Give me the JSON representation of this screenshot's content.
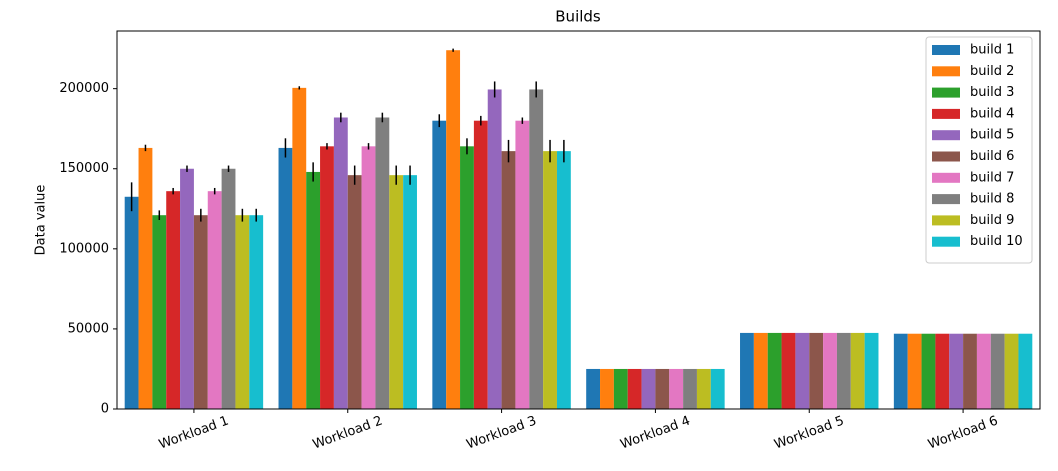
{
  "chart_data": {
    "type": "bar",
    "title": "Builds",
    "y_label": "Data value",
    "categories": [
      "Workload 1",
      "Workload 2",
      "Workload 3",
      "Workload 4",
      "Workload 5",
      "Workload 6"
    ],
    "series": [
      {
        "name": "build 1",
        "color": "#1f77b4",
        "values": [
          132500,
          163000,
          180000,
          25000,
          47500,
          47000
        ],
        "errors": [
          9000,
          6000,
          4000,
          0,
          0,
          0
        ]
      },
      {
        "name": "build 2",
        "color": "#ff7f0e",
        "values": [
          163000,
          200500,
          224000,
          25000,
          47500,
          47000
        ],
        "errors": [
          2000,
          1000,
          1000,
          0,
          0,
          0
        ]
      },
      {
        "name": "build 3",
        "color": "#2ca02c",
        "values": [
          121000,
          148000,
          164000,
          25000,
          47500,
          47000
        ],
        "errors": [
          3000,
          6000,
          5000,
          0,
          0,
          0
        ]
      },
      {
        "name": "build 4",
        "color": "#d62728",
        "values": [
          136000,
          164000,
          180000,
          25000,
          47500,
          47000
        ],
        "errors": [
          2000,
          2000,
          3000,
          0,
          0,
          0
        ]
      },
      {
        "name": "build 5",
        "color": "#9467bd",
        "values": [
          150000,
          182000,
          199500,
          25000,
          47500,
          47000
        ],
        "errors": [
          2000,
          3000,
          5000,
          0,
          0,
          0
        ]
      },
      {
        "name": "build 6",
        "color": "#8c564b",
        "values": [
          121000,
          146000,
          161000,
          25000,
          47500,
          47000
        ],
        "errors": [
          4000,
          6000,
          7000,
          0,
          0,
          0
        ]
      },
      {
        "name": "build 7",
        "color": "#e377c2",
        "values": [
          136000,
          164000,
          180000,
          25000,
          47500,
          47000
        ],
        "errors": [
          2000,
          2000,
          2000,
          0,
          0,
          0
        ]
      },
      {
        "name": "build 8",
        "color": "#7f7f7f",
        "values": [
          150000,
          182000,
          199500,
          25000,
          47500,
          47000
        ],
        "errors": [
          2000,
          3000,
          5000,
          0,
          0,
          0
        ]
      },
      {
        "name": "build 9",
        "color": "#bcbd22",
        "values": [
          121000,
          146000,
          161000,
          25000,
          47500,
          47000
        ],
        "errors": [
          4000,
          6000,
          7000,
          0,
          0,
          0
        ]
      },
      {
        "name": "build 10",
        "color": "#17becf",
        "values": [
          121000,
          146000,
          161000,
          25000,
          47500,
          47000
        ],
        "errors": [
          4000,
          6000,
          7000,
          0,
          0,
          0
        ]
      }
    ],
    "ylim": [
      0,
      236000
    ],
    "yticks": [
      0,
      50000,
      100000,
      150000,
      200000
    ],
    "legend": "upper-right"
  }
}
